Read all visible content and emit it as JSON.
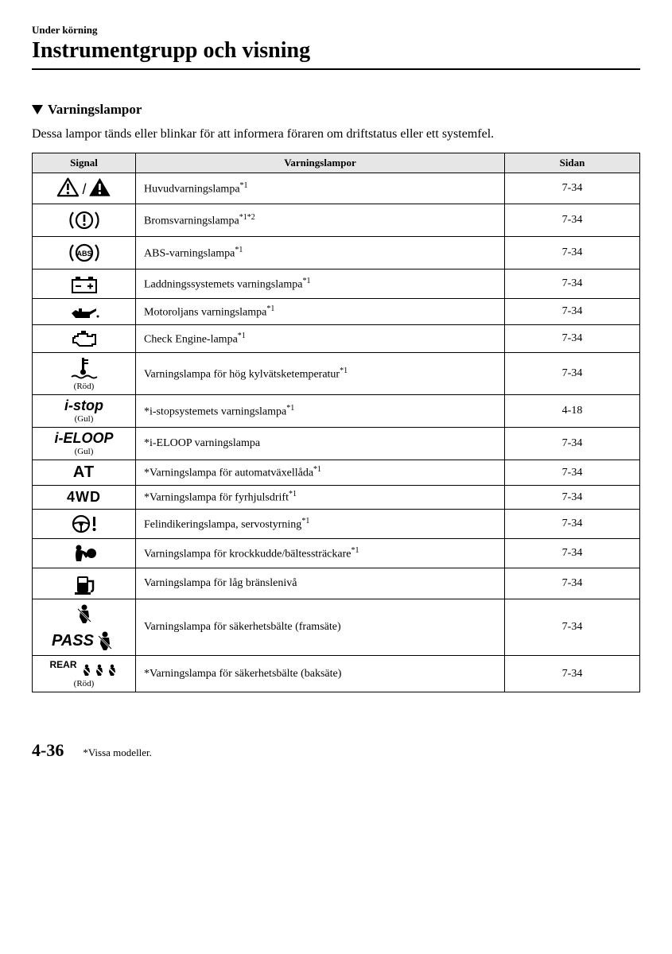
{
  "header": {
    "section_label": "Under körning",
    "page_title": "Instrumentgrupp och visning"
  },
  "subsection": {
    "heading": "Varningslampor",
    "intro": "Dessa lampor tänds eller blinkar för att informera föraren om driftstatus eller ett systemfel."
  },
  "table": {
    "columns": {
      "signal": "Signal",
      "desc": "Varningslampor",
      "page": "Sidan"
    },
    "header_bg": "#e6e6e6",
    "border_color": "#000000",
    "rows": [
      {
        "icon": "master-warning",
        "color_note": "",
        "desc": "Huvudvarningslampa",
        "sup": "*1",
        "page": "7-34"
      },
      {
        "icon": "brake",
        "color_note": "",
        "desc": "Bromsvarningslampa",
        "sup": "*1*2",
        "page": "7-34"
      },
      {
        "icon": "abs",
        "color_note": "",
        "desc": "ABS-varningslampa",
        "sup": "*1",
        "page": "7-34"
      },
      {
        "icon": "battery",
        "color_note": "",
        "desc": "Laddningssystemets varningslampa",
        "sup": "*1",
        "page": "7-34"
      },
      {
        "icon": "oil",
        "color_note": "",
        "desc": "Motoroljans varningslampa",
        "sup": "*1",
        "page": "7-34"
      },
      {
        "icon": "engine",
        "color_note": "",
        "desc": "Check Engine-lampa",
        "sup": "*1",
        "page": "7-34"
      },
      {
        "icon": "coolant",
        "color_note": "(Röd)",
        "desc": "Varningslampa för hög kylvätsketemperatur",
        "sup": "*1",
        "page": "7-34"
      },
      {
        "icon": "istop",
        "icon_text": "i-stop",
        "color_note": "(Gul)",
        "prefix": "*",
        "desc": "i-stopsystemets varningslampa",
        "sup": "*1",
        "page": "4-18"
      },
      {
        "icon": "ieloop",
        "icon_text": "i-ELOOP",
        "color_note": "(Gul)",
        "prefix": "*",
        "desc": "i-ELOOP varningslampa",
        "sup": "",
        "page": "7-34"
      },
      {
        "icon": "at",
        "icon_text": "AT",
        "color_note": "",
        "prefix": "*",
        "desc": "Varningslampa för automatväxellåda",
        "sup": "*1",
        "page": "7-34"
      },
      {
        "icon": "4wd",
        "icon_text": "4WD",
        "color_note": "",
        "prefix": "*",
        "desc": "Varningslampa för fyrhjulsdrift",
        "sup": "*1",
        "page": "7-34"
      },
      {
        "icon": "steering",
        "color_note": "",
        "desc": "Felindikeringslampa, servostyrning",
        "sup": "*1",
        "page": "7-34"
      },
      {
        "icon": "airbag",
        "color_note": "",
        "desc": "Varningslampa för krockkudde/bältessträckare",
        "sup": "*1",
        "page": "7-34"
      },
      {
        "icon": "fuel",
        "color_note": "",
        "desc": "Varningslampa för låg bränslenivå",
        "sup": "",
        "page": "7-34"
      },
      {
        "icon": "seatbelt-front",
        "pass_text": "PASS",
        "color_note": "",
        "desc": "Varningslampa för säkerhetsbälte (framsäte)",
        "sup": "",
        "page": "7-34"
      },
      {
        "icon": "seatbelt-rear",
        "rear_text": "REAR",
        "color_note": "(Röd)",
        "prefix": "*",
        "desc": "Varningslampa för säkerhetsbälte (baksäte)",
        "sup": "",
        "page": "7-34"
      }
    ]
  },
  "footer": {
    "page_number": "4-36",
    "footnote": "*Vissa modeller."
  }
}
